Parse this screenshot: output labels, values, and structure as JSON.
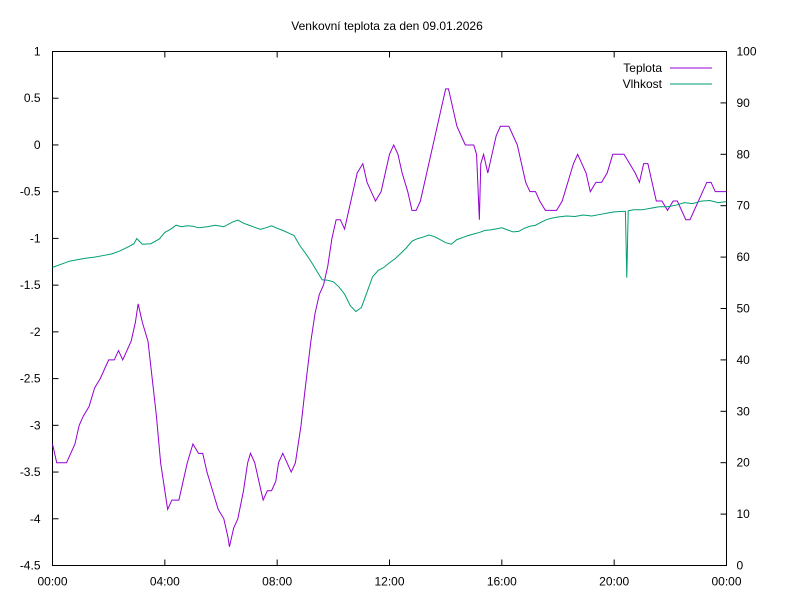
{
  "chart_data": {
    "type": "line",
    "title": "Venkovní teplota za den 09.01.2026",
    "x_ticks": [
      "00:00",
      "04:00",
      "08:00",
      "12:00",
      "16:00",
      "20:00",
      "00:00"
    ],
    "x_range_hours": [
      0,
      24
    ],
    "y_left": {
      "range": [
        -4.5,
        1
      ],
      "ticks": [
        "1",
        "0.5",
        "0",
        "-0.5",
        "-1",
        "-1.5",
        "-2",
        "-2.5",
        "-3",
        "-3.5",
        "-4",
        "-4.5"
      ]
    },
    "y_right": {
      "range": [
        0,
        100
      ],
      "ticks": [
        "100",
        "90",
        "80",
        "70",
        "60",
        "50",
        "40",
        "30",
        "20",
        "10",
        "0"
      ]
    },
    "grid": false,
    "legend_position": "top-right",
    "series": [
      {
        "name": "Teplota",
        "axis": "left",
        "color": "#9400d3",
        "points": [
          [
            0.0,
            -3.2
          ],
          [
            0.15,
            -3.4
          ],
          [
            0.3,
            -3.4
          ],
          [
            0.5,
            -3.4
          ],
          [
            0.65,
            -3.3
          ],
          [
            0.8,
            -3.2
          ],
          [
            0.95,
            -3.0
          ],
          [
            1.1,
            -2.9
          ],
          [
            1.3,
            -2.8
          ],
          [
            1.5,
            -2.6
          ],
          [
            1.7,
            -2.5
          ],
          [
            1.85,
            -2.4
          ],
          [
            2.0,
            -2.3
          ],
          [
            2.2,
            -2.3
          ],
          [
            2.35,
            -2.2
          ],
          [
            2.5,
            -2.3
          ],
          [
            2.65,
            -2.2
          ],
          [
            2.8,
            -2.1
          ],
          [
            2.95,
            -1.9
          ],
          [
            3.05,
            -1.7
          ],
          [
            3.2,
            -1.9
          ],
          [
            3.4,
            -2.1
          ],
          [
            3.55,
            -2.5
          ],
          [
            3.7,
            -2.9
          ],
          [
            3.85,
            -3.4
          ],
          [
            4.0,
            -3.7
          ],
          [
            4.1,
            -3.9
          ],
          [
            4.25,
            -3.8
          ],
          [
            4.5,
            -3.8
          ],
          [
            4.65,
            -3.6
          ],
          [
            4.8,
            -3.4
          ],
          [
            5.0,
            -3.2
          ],
          [
            5.2,
            -3.3
          ],
          [
            5.35,
            -3.3
          ],
          [
            5.5,
            -3.5
          ],
          [
            5.7,
            -3.7
          ],
          [
            5.9,
            -3.9
          ],
          [
            6.1,
            -4.0
          ],
          [
            6.25,
            -4.2
          ],
          [
            6.3,
            -4.3
          ],
          [
            6.45,
            -4.1
          ],
          [
            6.6,
            -4.0
          ],
          [
            6.8,
            -3.7
          ],
          [
            6.95,
            -3.4
          ],
          [
            7.05,
            -3.3
          ],
          [
            7.2,
            -3.4
          ],
          [
            7.35,
            -3.6
          ],
          [
            7.5,
            -3.8
          ],
          [
            7.65,
            -3.7
          ],
          [
            7.8,
            -3.7
          ],
          [
            7.95,
            -3.6
          ],
          [
            8.05,
            -3.4
          ],
          [
            8.2,
            -3.3
          ],
          [
            8.35,
            -3.4
          ],
          [
            8.5,
            -3.5
          ],
          [
            8.65,
            -3.4
          ],
          [
            8.85,
            -3.0
          ],
          [
            9.0,
            -2.6
          ],
          [
            9.2,
            -2.1
          ],
          [
            9.35,
            -1.8
          ],
          [
            9.5,
            -1.6
          ],
          [
            9.65,
            -1.5
          ],
          [
            9.8,
            -1.3
          ],
          [
            9.95,
            -1.0
          ],
          [
            10.1,
            -0.8
          ],
          [
            10.25,
            -0.8
          ],
          [
            10.4,
            -0.9
          ],
          [
            10.55,
            -0.7
          ],
          [
            10.7,
            -0.5
          ],
          [
            10.85,
            -0.3
          ],
          [
            11.05,
            -0.2
          ],
          [
            11.2,
            -0.4
          ],
          [
            11.35,
            -0.5
          ],
          [
            11.5,
            -0.6
          ],
          [
            11.7,
            -0.5
          ],
          [
            11.85,
            -0.3
          ],
          [
            12.0,
            -0.1
          ],
          [
            12.15,
            0.0
          ],
          [
            12.3,
            -0.1
          ],
          [
            12.45,
            -0.3
          ],
          [
            12.65,
            -0.5
          ],
          [
            12.8,
            -0.7
          ],
          [
            12.95,
            -0.7
          ],
          [
            13.1,
            -0.6
          ],
          [
            13.25,
            -0.4
          ],
          [
            13.4,
            -0.2
          ],
          [
            13.55,
            0.0
          ],
          [
            13.7,
            0.2
          ],
          [
            13.85,
            0.4
          ],
          [
            14.0,
            0.6
          ],
          [
            14.1,
            0.6
          ],
          [
            14.25,
            0.4
          ],
          [
            14.4,
            0.2
          ],
          [
            14.55,
            0.1
          ],
          [
            14.7,
            0.0
          ],
          [
            14.85,
            0.0
          ],
          [
            15.0,
            0.0
          ],
          [
            15.1,
            -0.1
          ],
          [
            15.2,
            -0.8
          ],
          [
            15.25,
            -0.2
          ],
          [
            15.35,
            -0.1
          ],
          [
            15.5,
            -0.3
          ],
          [
            15.65,
            -0.1
          ],
          [
            15.8,
            0.1
          ],
          [
            15.95,
            0.2
          ],
          [
            16.1,
            0.2
          ],
          [
            16.25,
            0.2
          ],
          [
            16.4,
            0.1
          ],
          [
            16.55,
            0.0
          ],
          [
            16.7,
            -0.2
          ],
          [
            16.85,
            -0.4
          ],
          [
            17.0,
            -0.5
          ],
          [
            17.2,
            -0.5
          ],
          [
            17.35,
            -0.6
          ],
          [
            17.55,
            -0.7
          ],
          [
            17.75,
            -0.7
          ],
          [
            17.95,
            -0.7
          ],
          [
            18.15,
            -0.6
          ],
          [
            18.35,
            -0.4
          ],
          [
            18.55,
            -0.2
          ],
          [
            18.7,
            -0.1
          ],
          [
            18.85,
            -0.2
          ],
          [
            19.0,
            -0.3
          ],
          [
            19.15,
            -0.5
          ],
          [
            19.35,
            -0.4
          ],
          [
            19.55,
            -0.4
          ],
          [
            19.75,
            -0.3
          ],
          [
            19.95,
            -0.1
          ],
          [
            20.15,
            -0.1
          ],
          [
            20.35,
            -0.1
          ],
          [
            20.55,
            -0.2
          ],
          [
            20.75,
            -0.3
          ],
          [
            20.9,
            -0.4
          ],
          [
            21.05,
            -0.2
          ],
          [
            21.2,
            -0.2
          ],
          [
            21.35,
            -0.4
          ],
          [
            21.5,
            -0.6
          ],
          [
            21.7,
            -0.6
          ],
          [
            21.9,
            -0.7
          ],
          [
            22.1,
            -0.6
          ],
          [
            22.25,
            -0.6
          ],
          [
            22.4,
            -0.7
          ],
          [
            22.55,
            -0.8
          ],
          [
            22.7,
            -0.8
          ],
          [
            22.85,
            -0.7
          ],
          [
            23.0,
            -0.6
          ],
          [
            23.15,
            -0.5
          ],
          [
            23.3,
            -0.4
          ],
          [
            23.45,
            -0.4
          ],
          [
            23.6,
            -0.5
          ],
          [
            23.8,
            -0.5
          ],
          [
            24.0,
            -0.5
          ]
        ]
      },
      {
        "name": "Vlhkost",
        "axis": "right",
        "color": "#009e73",
        "points": [
          [
            0.0,
            58.0
          ],
          [
            0.3,
            58.6
          ],
          [
            0.6,
            59.2
          ],
          [
            0.9,
            59.5
          ],
          [
            1.2,
            59.8
          ],
          [
            1.5,
            60.0
          ],
          [
            1.8,
            60.3
          ],
          [
            2.1,
            60.6
          ],
          [
            2.4,
            61.2
          ],
          [
            2.7,
            62.0
          ],
          [
            2.9,
            62.6
          ],
          [
            3.0,
            63.6
          ],
          [
            3.2,
            62.5
          ],
          [
            3.5,
            62.6
          ],
          [
            3.8,
            63.5
          ],
          [
            4.0,
            64.8
          ],
          [
            4.2,
            65.4
          ],
          [
            4.4,
            66.2
          ],
          [
            4.6,
            65.9
          ],
          [
            4.8,
            66.1
          ],
          [
            5.0,
            66.0
          ],
          [
            5.2,
            65.7
          ],
          [
            5.5,
            65.9
          ],
          [
            5.8,
            66.2
          ],
          [
            6.1,
            65.9
          ],
          [
            6.4,
            66.8
          ],
          [
            6.6,
            67.2
          ],
          [
            6.8,
            66.6
          ],
          [
            7.0,
            66.2
          ],
          [
            7.2,
            65.8
          ],
          [
            7.4,
            65.4
          ],
          [
            7.6,
            65.7
          ],
          [
            7.8,
            66.1
          ],
          [
            8.0,
            65.6
          ],
          [
            8.2,
            65.2
          ],
          [
            8.4,
            64.7
          ],
          [
            8.6,
            64.2
          ],
          [
            8.8,
            62.3
          ],
          [
            9.0,
            60.8
          ],
          [
            9.2,
            59.2
          ],
          [
            9.4,
            57.4
          ],
          [
            9.6,
            55.6
          ],
          [
            9.8,
            55.5
          ],
          [
            10.0,
            55.2
          ],
          [
            10.2,
            54.2
          ],
          [
            10.4,
            52.8
          ],
          [
            10.6,
            50.6
          ],
          [
            10.8,
            49.4
          ],
          [
            11.0,
            50.2
          ],
          [
            11.2,
            53.2
          ],
          [
            11.4,
            56.2
          ],
          [
            11.6,
            57.4
          ],
          [
            11.8,
            58.0
          ],
          [
            12.0,
            58.9
          ],
          [
            12.2,
            59.7
          ],
          [
            12.4,
            60.7
          ],
          [
            12.6,
            61.8
          ],
          [
            12.8,
            63.1
          ],
          [
            13.0,
            63.6
          ],
          [
            13.2,
            63.9
          ],
          [
            13.4,
            64.3
          ],
          [
            13.6,
            64.0
          ],
          [
            13.8,
            63.4
          ],
          [
            14.0,
            62.8
          ],
          [
            14.2,
            62.5
          ],
          [
            14.4,
            63.4
          ],
          [
            14.6,
            63.8
          ],
          [
            14.8,
            64.2
          ],
          [
            15.0,
            64.5
          ],
          [
            15.2,
            64.8
          ],
          [
            15.4,
            65.2
          ],
          [
            15.6,
            65.3
          ],
          [
            15.8,
            65.5
          ],
          [
            16.0,
            65.7
          ],
          [
            16.2,
            65.3
          ],
          [
            16.4,
            64.9
          ],
          [
            16.6,
            65.0
          ],
          [
            16.8,
            65.6
          ],
          [
            17.0,
            66.0
          ],
          [
            17.2,
            66.2
          ],
          [
            17.4,
            66.8
          ],
          [
            17.6,
            67.3
          ],
          [
            17.8,
            67.6
          ],
          [
            18.0,
            67.8
          ],
          [
            18.3,
            68.0
          ],
          [
            18.6,
            67.9
          ],
          [
            18.9,
            68.2
          ],
          [
            19.2,
            68.0
          ],
          [
            19.5,
            68.3
          ],
          [
            19.8,
            68.6
          ],
          [
            20.0,
            68.8
          ],
          [
            20.3,
            68.9
          ],
          [
            20.4,
            68.9
          ],
          [
            20.45,
            56.0
          ],
          [
            20.5,
            69.0
          ],
          [
            20.7,
            69.2
          ],
          [
            21.0,
            69.2
          ],
          [
            21.3,
            69.5
          ],
          [
            21.6,
            69.8
          ],
          [
            21.9,
            69.8
          ],
          [
            22.2,
            70.1
          ],
          [
            22.5,
            70.6
          ],
          [
            22.8,
            70.4
          ],
          [
            23.1,
            70.9
          ],
          [
            23.4,
            71.0
          ],
          [
            23.7,
            70.6
          ],
          [
            24.0,
            70.8
          ]
        ]
      }
    ]
  }
}
